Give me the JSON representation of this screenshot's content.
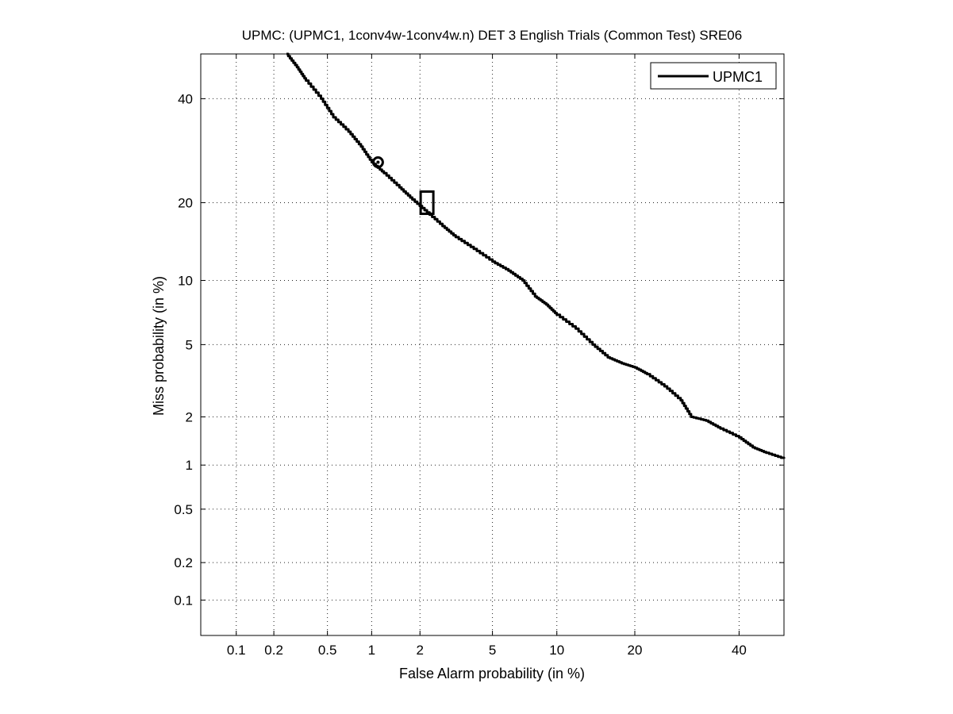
{
  "chart_data": {
    "type": "line",
    "title": "UPMC: (UPMC1, 1conv4w-1conv4w.n) DET 3 English Trials (Common Test) SRE06",
    "xlabel": "False Alarm probability (in %)",
    "ylabel": "Miss probability (in %)",
    "x_scale": "normal-deviate (probit)",
    "y_scale": "normal-deviate (probit)",
    "xlim": [
      0.05,
      50
    ],
    "ylim": [
      0.05,
      50
    ],
    "x_ticks": [
      "0.1",
      "0.2",
      "0.5",
      "1",
      "2",
      "5",
      "10",
      "20",
      "40"
    ],
    "y_ticks": [
      "0.1",
      "0.2",
      "0.5",
      "1",
      "2",
      "5",
      "10",
      "20",
      "40"
    ],
    "grid": true,
    "legend_position": "top-right",
    "series": [
      {
        "name": "UPMC1",
        "color": "#000000",
        "x": [
          0.25,
          0.3,
          0.35,
          0.45,
          0.55,
          0.7,
          0.85,
          1.0,
          1.2,
          1.5,
          1.8,
          2.2,
          2.7,
          3.2,
          4.0,
          5.0,
          6.0,
          7.0,
          8.0,
          9.0,
          10.0,
          12.0,
          14.0,
          16.0,
          18.0,
          20.0,
          22.0,
          25.0,
          28.0,
          30.0,
          33.0,
          36.0,
          40.0,
          43.0,
          46.0,
          50.0
        ],
        "y": [
          50.0,
          47.0,
          44.0,
          40.0,
          36.0,
          33.0,
          30.0,
          27.0,
          25.0,
          22.5,
          20.5,
          18.5,
          16.5,
          15.0,
          13.5,
          12.0,
          11.0,
          10.0,
          8.5,
          7.8,
          7.0,
          6.0,
          5.0,
          4.3,
          4.0,
          3.8,
          3.5,
          3.0,
          2.5,
          2.0,
          1.9,
          1.7,
          1.5,
          1.3,
          1.2,
          1.1
        ]
      }
    ],
    "markers": [
      {
        "shape": "circle",
        "x": 1.1,
        "y": 27.0
      },
      {
        "shape": "square",
        "x": 2.2,
        "y": 20.0
      }
    ]
  }
}
